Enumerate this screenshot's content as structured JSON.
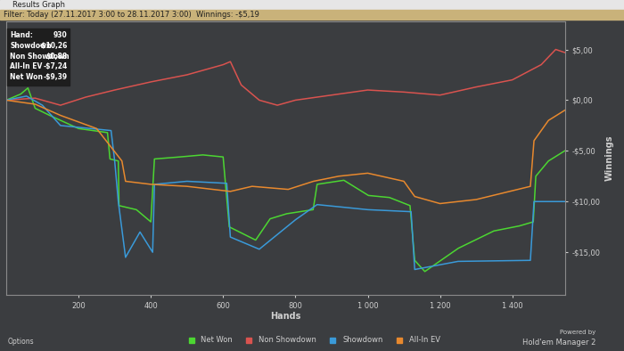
{
  "window_title": "Results Graph",
  "filter": "Filter: Today (27.11.2017 3:00 to 28.11.2017 3:00)  Winnings: -$5,19",
  "info_box": [
    {
      "label": "Hand:",
      "value": "930"
    },
    {
      "label": "Showdown",
      "value": "-$10,26"
    },
    {
      "label": "Non Showdown",
      "value": "$0,88"
    },
    {
      "label": "All-In EV",
      "value": "-$7,24"
    },
    {
      "label": "Net Won",
      "value": "-$9,39"
    }
  ],
  "footer": {
    "options": "Options",
    "powered_by": "Powered by",
    "brand": "Hold'em Manager 2"
  },
  "chart_data": {
    "type": "line",
    "x_label": "Hands",
    "y_label": "Winnings",
    "xlim": [
      0,
      1545
    ],
    "ylim": [
      -19.2,
      7.8
    ],
    "xticks": [
      200,
      400,
      600,
      800,
      {
        "value": 1000,
        "label": "1 000"
      },
      {
        "value": 1200,
        "label": "1 200"
      },
      {
        "value": 1400,
        "label": "1 400"
      }
    ],
    "yticks": [
      {
        "value": 5,
        "label": "$5,00"
      },
      {
        "value": 0,
        "label": "$0,00"
      },
      {
        "value": -5,
        "label": "-$5,00"
      },
      {
        "value": -10,
        "label": "-$10,00"
      },
      {
        "value": -15,
        "label": "-$15,00"
      }
    ],
    "grid": false,
    "legend": "bottom",
    "series": [
      {
        "name": "Net Won",
        "color": "#4cd632",
        "x": [
          0,
          40,
          60,
          80,
          120,
          200,
          280,
          287,
          310,
          312,
          360,
          400,
          410,
          480,
          544,
          600,
          617,
          690,
          730,
          776,
          849,
          860,
          934,
          1002,
          1060,
          1117,
          1130,
          1158,
          1251,
          1349,
          1420,
          1458,
          1465,
          1500,
          1545
        ],
        "values": [
          0,
          0.6,
          1.2,
          -0.8,
          -1.5,
          -2.8,
          -3.2,
          -5.8,
          -6.0,
          -10.4,
          -10.8,
          -12.0,
          -5.8,
          -5.6,
          -5.4,
          -5.6,
          -12.5,
          -13.8,
          -11.7,
          -11.2,
          -10.8,
          -8.3,
          -7.9,
          -9.4,
          -9.6,
          -10.4,
          -15.8,
          -16.9,
          -14.6,
          -12.9,
          -12.4,
          -12.0,
          -7.5,
          -6.0,
          -5.0
        ]
      },
      {
        "name": "Non Showdown",
        "color": "#d9534f",
        "x": [
          0,
          80,
          150,
          220,
          300,
          400,
          500,
          600,
          620,
          650,
          700,
          750,
          800,
          900,
          1000,
          1100,
          1200,
          1300,
          1400,
          1480,
          1520,
          1545
        ],
        "values": [
          0,
          0.2,
          -0.5,
          0.3,
          1.0,
          1.8,
          2.5,
          3.5,
          3.8,
          1.5,
          0.0,
          -0.5,
          0.0,
          0.5,
          1.0,
          0.8,
          0.5,
          1.3,
          2.0,
          3.5,
          5.0,
          4.7
        ]
      },
      {
        "name": "Showdown",
        "color": "#3a9ad9",
        "x": [
          0,
          56,
          100,
          150,
          290,
          300,
          310,
          330,
          370,
          405,
          410,
          500,
          610,
          620,
          700,
          800,
          860,
          1000,
          1120,
          1130,
          1250,
          1450,
          1460,
          1545
        ],
        "values": [
          0,
          0.4,
          -0.5,
          -2.5,
          -3.0,
          -6.0,
          -10.0,
          -15.5,
          -13.0,
          -15.0,
          -8.3,
          -8.0,
          -8.2,
          -13.5,
          -14.7,
          -11.8,
          -10.3,
          -10.8,
          -11.0,
          -16.7,
          -15.9,
          -15.8,
          -10.0,
          -10.0
        ]
      },
      {
        "name": "All-In EV",
        "color": "#e8892e",
        "x": [
          0,
          80,
          150,
          250,
          320,
          330,
          400,
          500,
          620,
          680,
          780,
          850,
          920,
          1000,
          1100,
          1130,
          1200,
          1300,
          1450,
          1460,
          1500,
          1545
        ],
        "values": [
          0,
          -0.4,
          -1.5,
          -2.8,
          -6.0,
          -8.0,
          -8.3,
          -8.5,
          -9.0,
          -8.5,
          -8.8,
          -8.0,
          -7.5,
          -7.2,
          -8.0,
          -9.5,
          -10.2,
          -9.8,
          -8.5,
          -4.0,
          -2.0,
          -1.0
        ]
      }
    ]
  }
}
